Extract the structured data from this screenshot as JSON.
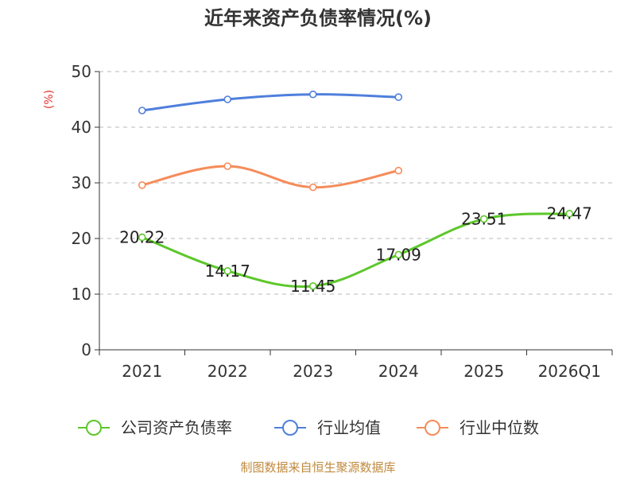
{
  "chart_data": {
    "type": "line",
    "title": "近年来资产负债率情况(%)",
    "ylabel": "(%)",
    "xlabel": "",
    "categories": [
      "2021",
      "2022",
      "2023",
      "2024",
      "2025",
      "2026Q1"
    ],
    "ylim": [
      0,
      50
    ],
    "yticks": [
      0,
      10,
      20,
      30,
      40,
      50
    ],
    "grid": "horizontal dashed",
    "legend_position": "bottom",
    "series": [
      {
        "name": "公司资产负债率",
        "color": "#5cc72a",
        "values": [
          20.22,
          14.17,
          11.45,
          17.09,
          23.51,
          24.47
        ],
        "labels": [
          "20.22",
          "14.17",
          "11.45",
          "17.09",
          "23.51",
          "24.47"
        ]
      },
      {
        "name": "行业均值",
        "color": "#4f7fdc",
        "values": [
          43.0,
          45.0,
          45.9,
          45.4,
          null,
          null
        ]
      },
      {
        "name": "行业中位数",
        "color": "#f58c5a",
        "values": [
          29.6,
          33.0,
          29.2,
          32.2,
          null,
          null
        ]
      }
    ]
  },
  "source": "制图数据来自恒生聚源数据库"
}
